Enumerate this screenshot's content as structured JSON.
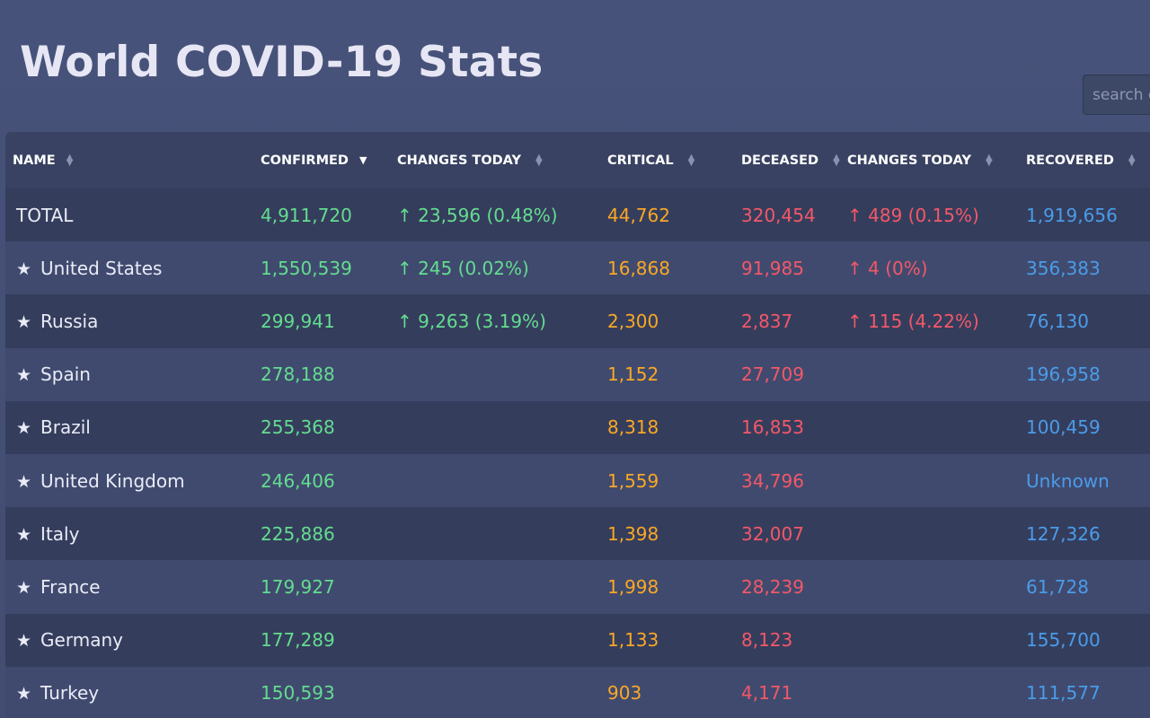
{
  "page": {
    "title": "World COVID-19 Stats",
    "search_placeholder": "search country"
  },
  "colors": {
    "confirmed": "#63dd8f",
    "critical": "#f9a825",
    "deceased": "#f35867",
    "recovered": "#4a9ce8",
    "background": "#434e74"
  },
  "table": {
    "headers": {
      "name": "NAME",
      "confirmed": "CONFIRMED",
      "changes_today": "CHANGES TODAY",
      "critical": "CRITICAL",
      "deceased": "DECEASED",
      "deaths_changes_today": "CHANGES TODAY",
      "recovered": "RECOVERED"
    },
    "sort_icons": {
      "unsorted": "sort-icon",
      "active": "sort-desc-icon"
    },
    "rows": [
      {
        "name": "TOTAL",
        "confirmed": "4,911,720",
        "changes_today": "↑ 23,596 (0.48%)",
        "critical": "44,762",
        "deceased": "320,454",
        "deaths_changes_today": "↑ 489 (0.15%)",
        "recovered": "1,919,656"
      },
      {
        "name": "United States",
        "confirmed": "1,550,539",
        "changes_today": "↑ 245 (0.02%)",
        "critical": "16,868",
        "deceased": "91,985",
        "deaths_changes_today": "↑ 4 (0%)",
        "recovered": "356,383"
      },
      {
        "name": "Russia",
        "confirmed": "299,941",
        "changes_today": "↑ 9,263 (3.19%)",
        "critical": "2,300",
        "deceased": "2,837",
        "deaths_changes_today": "↑ 115 (4.22%)",
        "recovered": "76,130"
      },
      {
        "name": "Spain",
        "confirmed": "278,188",
        "changes_today": "",
        "critical": "1,152",
        "deceased": "27,709",
        "deaths_changes_today": "",
        "recovered": "196,958"
      },
      {
        "name": "Brazil",
        "confirmed": "255,368",
        "changes_today": "",
        "critical": "8,318",
        "deceased": "16,853",
        "deaths_changes_today": "",
        "recovered": "100,459"
      },
      {
        "name": "United Kingdom",
        "confirmed": "246,406",
        "changes_today": "",
        "critical": "1,559",
        "deceased": "34,796",
        "deaths_changes_today": "",
        "recovered": "Unknown"
      },
      {
        "name": "Italy",
        "confirmed": "225,886",
        "changes_today": "",
        "critical": "1,398",
        "deceased": "32,007",
        "deaths_changes_today": "",
        "recovered": "127,326"
      },
      {
        "name": "France",
        "confirmed": "179,927",
        "changes_today": "",
        "critical": "1,998",
        "deceased": "28,239",
        "deaths_changes_today": "",
        "recovered": "61,728"
      },
      {
        "name": "Germany",
        "confirmed": "177,289",
        "changes_today": "",
        "critical": "1,133",
        "deceased": "8,123",
        "deaths_changes_today": "",
        "recovered": "155,700"
      },
      {
        "name": "Turkey",
        "confirmed": "150,593",
        "changes_today": "",
        "critical": "903",
        "deceased": "4,171",
        "deaths_changes_today": "",
        "recovered": "111,577"
      }
    ]
  }
}
